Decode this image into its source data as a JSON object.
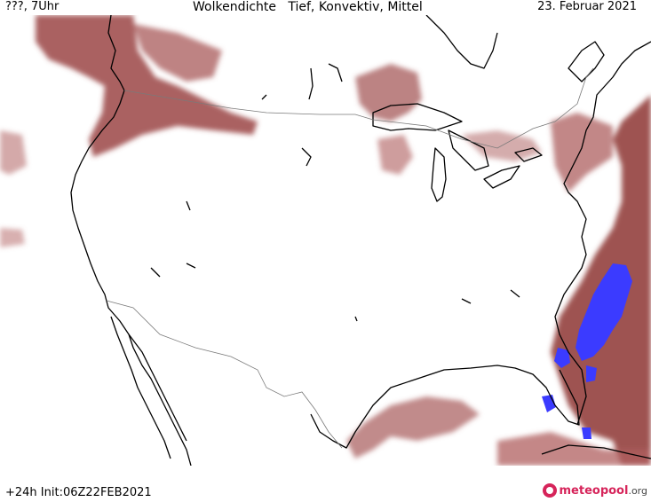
{
  "header": {
    "left": "???, 7Uhr",
    "center": "Wolkendichte   Tief, Konvektiv, Mittel",
    "right": "23. Februar 2021"
  },
  "footer": {
    "run": "+24h  Init:06Z22FEB2021",
    "logo_brand": "meteopool",
    "logo_tld": ".org"
  },
  "colors": {
    "cloud_dark": "#8f3a3a",
    "cloud_mid": "#a85a5a",
    "cloud_light": "#c99090",
    "convective": "#3a3aff",
    "coast": "#000000",
    "border": "#7a7a7a",
    "brand": "#d6245a"
  }
}
